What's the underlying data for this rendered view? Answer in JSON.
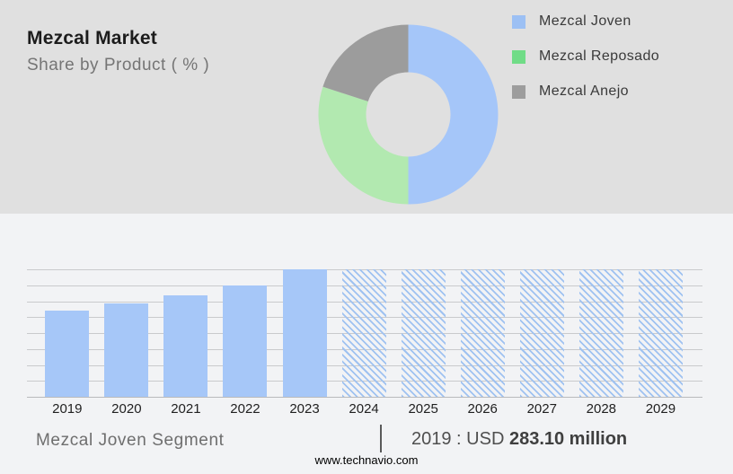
{
  "header": {
    "title": "Mezcal Market",
    "subtitle": "Share by Product ( % )"
  },
  "legend": {
    "items": [
      {
        "label": "Mezcal Joven",
        "color": "#9cc0f4"
      },
      {
        "label": "Mezcal Reposado",
        "color": "#70dc87"
      },
      {
        "label": "Mezcal Anejo",
        "color": "#9d9d9d"
      }
    ]
  },
  "footer": {
    "segment_label": "Mezcal Joven Segment",
    "separator": "|",
    "value_prefix": "2019 : USD",
    "value_bold": "283.10 million",
    "website": "www.technavio.com"
  },
  "colors": {
    "top_panel_bg": "#e0e0e0",
    "bottom_panel_bg": "#f2f3f5",
    "gridline": "#c9cacc",
    "bar_solid": "#a6c7f8",
    "bar_hatch": "#9fc2f1"
  },
  "chart_data": [
    {
      "type": "pie",
      "donut": true,
      "title": "Share by Product ( % )",
      "labels": [
        "Mezcal Joven",
        "Mezcal Reposado",
        "Mezcal Anejo"
      ],
      "values_pct": [
        50,
        30,
        20
      ],
      "colors": [
        "#a5c6f9",
        "#b2e9b0",
        "#9c9c9c"
      ],
      "start_angle_deg": 0,
      "direction": "clockwise",
      "inner_radius_ratio": 0.47,
      "legend_position": "right"
    },
    {
      "type": "bar",
      "categories": [
        "2019",
        "2020",
        "2021",
        "2022",
        "2023",
        "2024",
        "2025",
        "2026",
        "2027",
        "2028",
        "2029"
      ],
      "values_relative_pct": [
        67.5,
        73.5,
        79.5,
        87.5,
        100,
        100,
        100,
        100,
        100,
        100,
        100
      ],
      "bar_styles": [
        "solid",
        "solid",
        "solid",
        "solid",
        "solid",
        "hatched",
        "hatched",
        "hatched",
        "hatched",
        "hatched",
        "hatched"
      ],
      "known_values": {
        "2019": "USD 283.10 million"
      },
      "ylim_pct": [
        0,
        100
      ],
      "gridline_count": 9,
      "grid": true,
      "hatched_meaning": "forecast period, drawn full height"
    }
  ]
}
